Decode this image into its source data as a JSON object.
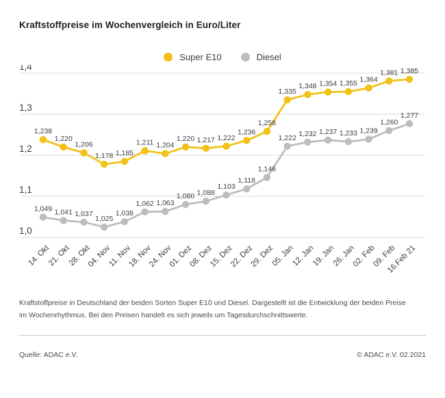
{
  "title": "Kraftstoffpreise im Wochenvergleich in Euro/Liter",
  "chart_data": {
    "type": "line",
    "title": "Kraftstoffpreise im Wochenvergleich in Euro/Liter",
    "categories": [
      "14. Okt",
      "21. Okt",
      "28. Okt",
      "04. Nov",
      "11. Nov",
      "18. Nov",
      "24. Nov",
      "01. Dez",
      "08. Dez",
      "15. Dez",
      "22. Dez",
      "29. Dez",
      "05. Jan",
      "12. Jan",
      "19. Jan",
      "26. Jan",
      "02. Feb",
      "09. Feb",
      "16.Feb 21"
    ],
    "series": [
      {
        "name": "Super E10",
        "color": "#f2c118",
        "values": [
          1.238,
          1.22,
          1.206,
          1.178,
          1.185,
          1.211,
          1.204,
          1.22,
          1.217,
          1.222,
          1.236,
          1.258,
          1.335,
          1.348,
          1.354,
          1.355,
          1.364,
          1.381,
          1.385
        ]
      },
      {
        "name": "Diesel",
        "color": "#bdbdbd",
        "values": [
          1.049,
          1.041,
          1.037,
          1.025,
          1.038,
          1.062,
          1.063,
          1.08,
          1.088,
          1.103,
          1.118,
          1.146,
          1.222,
          1.232,
          1.237,
          1.233,
          1.239,
          1.26,
          1.277
        ]
      }
    ],
    "xlabel": "",
    "ylabel": "",
    "ylim": [
      1.0,
      1.4
    ],
    "yticks": [
      1.4,
      1.3,
      1.2,
      1.1,
      1.0
    ],
    "decimal_separator": ",",
    "grid": true,
    "point_labels": true,
    "legend_position": "top-center",
    "gridline_color": "#d9d9d9",
    "text_color": "#3c3c3b"
  },
  "description": "Kraftstoffpreise in Deutschland der beiden Sorten Super E10 und Diesel. Dargestellt ist die Entwicklung der beiden Preise im Wochenrhythmus. Bei den Preisen handelt es sich jeweils um Tagesdurchschnittswerte.",
  "footer": {
    "source": "Quelle: ADAC e.V.",
    "copyright": "© ADAC e.V. 02.2021"
  }
}
